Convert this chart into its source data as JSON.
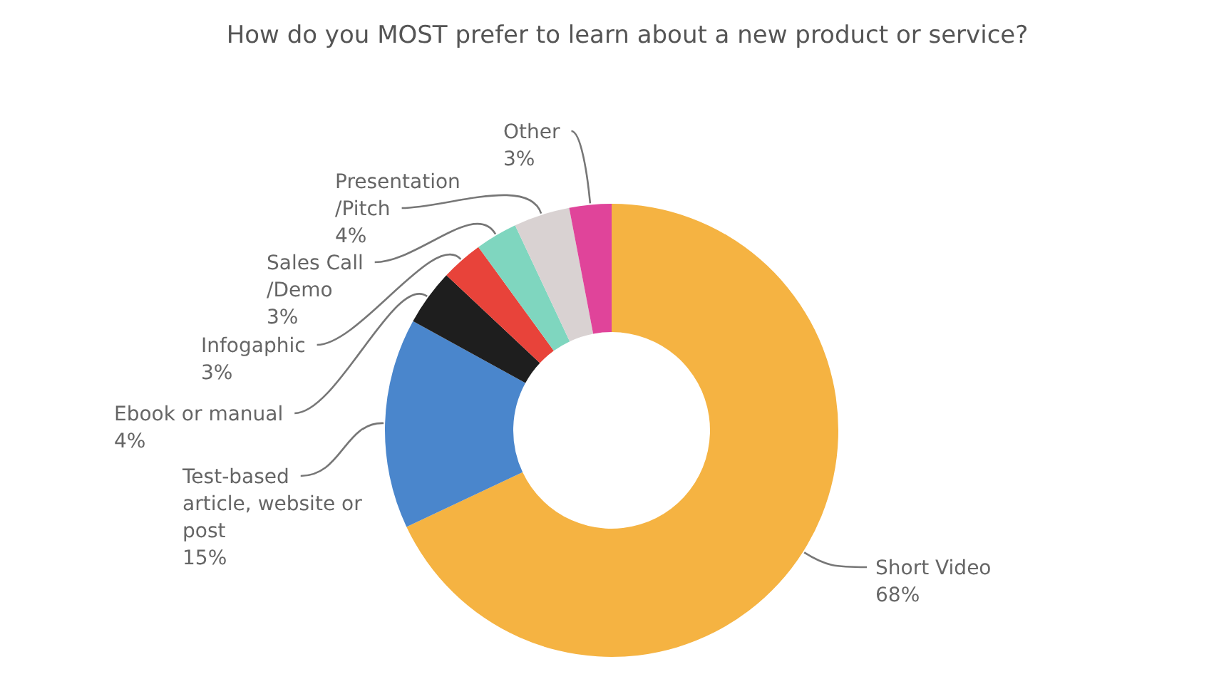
{
  "chart_data": {
    "type": "donut",
    "title": "How do you MOST prefer to learn about a new product or service?",
    "categories": [
      "Short Video",
      "Test-based article, website or post",
      "Ebook or manual",
      "Infogaphic",
      "Sales Call /Demo",
      "Presentation /Pitch",
      "Other"
    ],
    "values": [
      68,
      15,
      4,
      3,
      3,
      4,
      3
    ],
    "colors": [
      "#f5b342",
      "#4a86cc",
      "#1e1e1e",
      "#e8433a",
      "#7fd6bf",
      "#d9d2d2",
      "#e0449a"
    ],
    "value_labels": [
      "68%",
      "15%",
      "4%",
      "3%",
      "3%",
      "4%",
      "3%"
    ]
  }
}
